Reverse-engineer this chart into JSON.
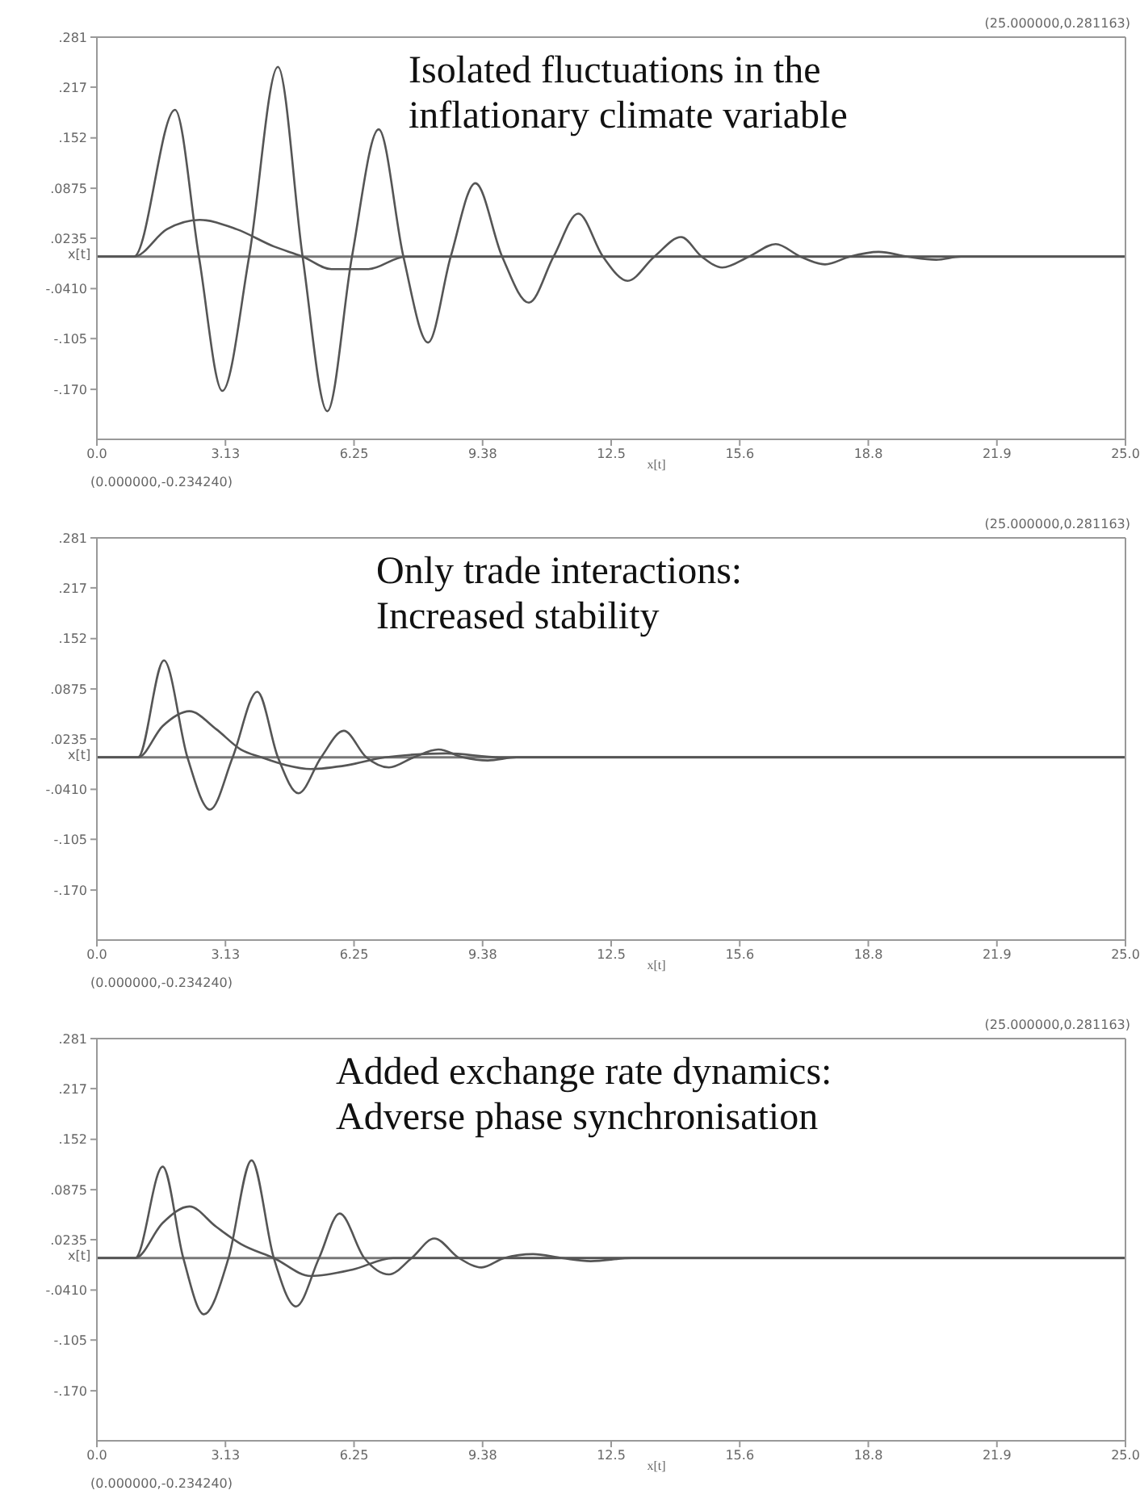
{
  "chart_data": [
    {
      "type": "line",
      "title": "Isolated fluctuations in the\ninflationary climate variable",
      "xlabel": "x[t]",
      "ylabel": "x[t]",
      "xlim": [
        0,
        25
      ],
      "xticks": [
        {
          "value": 0,
          "label": "0.0"
        },
        {
          "value": 3.125,
          "label": "3.13"
        },
        {
          "value": 6.25,
          "label": "6.25"
        },
        {
          "value": 9.375,
          "label": "9.38"
        },
        {
          "value": 12.5,
          "label": "12.5"
        },
        {
          "value": 15.625,
          "label": "15.6"
        },
        {
          "value": 18.75,
          "label": "18.8"
        },
        {
          "value": 21.875,
          "label": "21.9"
        },
        {
          "value": 25,
          "label": "25.0"
        }
      ],
      "ylim": [
        -0.234,
        0.281
      ],
      "yticks": [
        {
          "value": 0.281,
          "label": ".281"
        },
        {
          "value": 0.217,
          "label": ".217"
        },
        {
          "value": 0.152,
          "label": ".152"
        },
        {
          "value": 0.0875,
          "label": ".0875"
        },
        {
          "value": 0.0235,
          "label": ".0235"
        },
        {
          "value": -0.041,
          "label": "-.0410"
        },
        {
          "value": -0.105,
          "label": "-.105"
        },
        {
          "value": -0.17,
          "label": "-.170"
        }
      ],
      "grid": false,
      "marker": "none",
      "line_style": "solid",
      "ref_lines": [
        {
          "axis": "y",
          "value": 0
        }
      ],
      "annotations": [
        "(0.000000,-0.234240)",
        "(25.000000,0.281163)"
      ],
      "series": [
        {
          "color": "#555555",
          "x": [
            0,
            0.9,
            1.9,
            2.48,
            3.05,
            3.7,
            4.4,
            5.0,
            5.6,
            6.2,
            6.85,
            7.45,
            8.05,
            8.6,
            9.2,
            9.85,
            10.5,
            11.1,
            11.7,
            12.3,
            12.9,
            13.55,
            14.2,
            14.7,
            15.2,
            15.85,
            16.5,
            17.1,
            17.7,
            18.3,
            19.0,
            19.7,
            20.4,
            21.0,
            25
          ],
          "values": [
            0,
            0,
            0.188,
            0,
            -0.172,
            0,
            0.243,
            0,
            -0.198,
            0,
            0.163,
            0,
            -0.11,
            0,
            0.094,
            0,
            -0.059,
            0,
            0.055,
            0,
            -0.031,
            0,
            0.025,
            0,
            -0.014,
            0,
            0.016,
            0,
            -0.01,
            0,
            0.006,
            0,
            -0.004,
            0,
            0
          ]
        },
        {
          "color": "#555555",
          "x": [
            0,
            0.9,
            1.7,
            2.5,
            3.4,
            4.3,
            5.0,
            5.7,
            6.6,
            7.5,
            25
          ],
          "values": [
            0,
            0,
            0.035,
            0.047,
            0.035,
            0.013,
            0,
            -0.016,
            -0.016,
            0,
            0
          ]
        }
      ]
    },
    {
      "type": "line",
      "title": "Only trade interactions:\nIncreased stability",
      "xlabel": "x[t]",
      "ylabel": "x[t]",
      "xlim": [
        0,
        25
      ],
      "xticks": [
        {
          "value": 0,
          "label": "0.0"
        },
        {
          "value": 3.125,
          "label": "3.13"
        },
        {
          "value": 6.25,
          "label": "6.25"
        },
        {
          "value": 9.375,
          "label": "9.38"
        },
        {
          "value": 12.5,
          "label": "12.5"
        },
        {
          "value": 15.625,
          "label": "15.6"
        },
        {
          "value": 18.75,
          "label": "18.8"
        },
        {
          "value": 21.875,
          "label": "21.9"
        },
        {
          "value": 25,
          "label": "25.0"
        }
      ],
      "ylim": [
        -0.234,
        0.281
      ],
      "yticks": [
        {
          "value": 0.281,
          "label": ".281"
        },
        {
          "value": 0.217,
          "label": ".217"
        },
        {
          "value": 0.152,
          "label": ".152"
        },
        {
          "value": 0.0875,
          "label": ".0875"
        },
        {
          "value": 0.0235,
          "label": ".0235"
        },
        {
          "value": -0.041,
          "label": "-.0410"
        },
        {
          "value": -0.105,
          "label": "-.105"
        },
        {
          "value": -0.17,
          "label": "-.170"
        }
      ],
      "grid": false,
      "marker": "none",
      "line_style": "solid",
      "ref_lines": [
        {
          "axis": "y",
          "value": 0
        }
      ],
      "annotations": [
        "(0.000000,-0.234240)",
        "(25.000000,0.281163)"
      ],
      "series": [
        {
          "color": "#555555",
          "x": [
            0,
            1.0,
            1.63,
            2.2,
            2.75,
            3.3,
            3.9,
            4.4,
            4.9,
            5.45,
            6.0,
            6.55,
            7.1,
            7.7,
            8.3,
            8.9,
            9.5,
            10.2,
            25
          ],
          "values": [
            0,
            0,
            0.124,
            0,
            -0.067,
            0,
            0.084,
            0,
            -0.046,
            0,
            0.034,
            0,
            -0.013,
            0,
            0.01,
            0,
            -0.004,
            0,
            0
          ]
        },
        {
          "color": "#555555",
          "x": [
            0,
            1.0,
            1.6,
            2.25,
            2.9,
            3.5,
            4.0,
            4.6,
            5.2,
            6.1,
            7.0,
            8.5,
            9.8,
            25
          ],
          "values": [
            0,
            0,
            0.04,
            0.059,
            0.036,
            0.01,
            0,
            -0.01,
            -0.015,
            -0.01,
            0,
            0.005,
            0,
            0
          ]
        }
      ]
    },
    {
      "type": "line",
      "title": "Added exchange rate dynamics:\nAdverse phase synchronisation",
      "xlabel": "x[t]",
      "ylabel": "x[t]",
      "xlim": [
        0,
        25
      ],
      "xticks": [
        {
          "value": 0,
          "label": "0.0"
        },
        {
          "value": 3.125,
          "label": "3.13"
        },
        {
          "value": 6.25,
          "label": "6.25"
        },
        {
          "value": 9.375,
          "label": "9.38"
        },
        {
          "value": 12.5,
          "label": "12.5"
        },
        {
          "value": 15.625,
          "label": "15.6"
        },
        {
          "value": 18.75,
          "label": "18.8"
        },
        {
          "value": 21.875,
          "label": "21.9"
        },
        {
          "value": 25,
          "label": "25.0"
        }
      ],
      "ylim": [
        -0.234,
        0.281
      ],
      "yticks": [
        {
          "value": 0.281,
          "label": ".281"
        },
        {
          "value": 0.217,
          "label": ".217"
        },
        {
          "value": 0.152,
          "label": ".152"
        },
        {
          "value": 0.0875,
          "label": ".0875"
        },
        {
          "value": 0.0235,
          "label": ".0235"
        },
        {
          "value": -0.041,
          "label": "-.0410"
        },
        {
          "value": -0.105,
          "label": "-.105"
        },
        {
          "value": -0.17,
          "label": "-.170"
        }
      ],
      "grid": false,
      "marker": "none",
      "line_style": "solid",
      "ref_lines": [
        {
          "axis": "y",
          "value": 0
        }
      ],
      "annotations": [
        "(0.000000,-0.234240)",
        "(25.000000,0.281163)"
      ],
      "series": [
        {
          "color": "#555555",
          "x": [
            0,
            0.93,
            1.6,
            2.1,
            2.6,
            3.2,
            3.76,
            4.3,
            4.84,
            5.4,
            5.9,
            6.5,
            7.1,
            7.65,
            8.2,
            8.8,
            9.35,
            9.9,
            10.6,
            11.3,
            12.0,
            13.0,
            25
          ],
          "values": [
            0,
            0,
            0.117,
            0,
            -0.072,
            0,
            0.125,
            0,
            -0.062,
            0,
            0.057,
            0,
            -0.021,
            0,
            0.025,
            0,
            -0.012,
            0,
            0.005,
            0,
            -0.004,
            0,
            0
          ]
        },
        {
          "color": "#555555",
          "x": [
            0,
            0.93,
            1.6,
            2.25,
            2.9,
            3.5,
            4.3,
            5.2,
            6.2,
            7.2,
            25
          ],
          "values": [
            0,
            0,
            0.045,
            0.066,
            0.04,
            0.018,
            0,
            -0.023,
            -0.015,
            0,
            0
          ]
        }
      ]
    }
  ]
}
